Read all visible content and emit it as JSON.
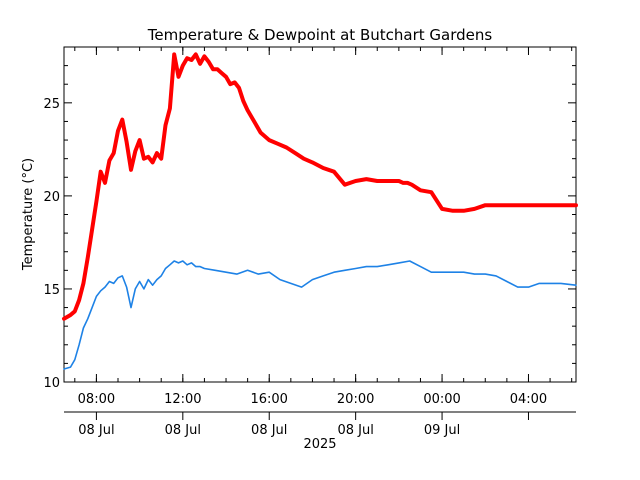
{
  "chart_data": {
    "type": "line",
    "title": "Temperature & Dewpoint at Butchart Gardens",
    "ylabel": "Temperature (°C)",
    "ylim": [
      10,
      28
    ],
    "yticks": [
      10,
      15,
      20,
      25
    ],
    "x_hours_range": [
      6.5,
      30.2
    ],
    "xticks": [
      {
        "hour": 8,
        "time": "08:00",
        "date": "08 Jul"
      },
      {
        "hour": 12,
        "time": "12:00",
        "date": "08 Jul"
      },
      {
        "hour": 16,
        "time": "16:00",
        "date": "08 Jul"
      },
      {
        "hour": 20,
        "time": "20:00",
        "date": "08 Jul"
      },
      {
        "hour": 24,
        "time": "00:00",
        "date": "09 Jul"
      },
      {
        "hour": 28,
        "time": "04:00",
        "date": ""
      }
    ],
    "year_label": "2025",
    "series": [
      {
        "color": "#ff0000",
        "x": [
          6.5,
          6.8,
          7.0,
          7.2,
          7.4,
          7.6,
          7.8,
          8.0,
          8.2,
          8.4,
          8.6,
          8.8,
          9.0,
          9.2,
          9.4,
          9.6,
          9.8,
          10.0,
          10.2,
          10.4,
          10.6,
          10.8,
          11.0,
          11.2,
          11.4,
          11.6,
          11.8,
          12.0,
          12.2,
          12.4,
          12.6,
          12.8,
          13.0,
          13.2,
          13.4,
          13.6,
          13.8,
          14.0,
          14.2,
          14.4,
          14.6,
          14.8,
          15.0,
          15.3,
          15.6,
          16.0,
          16.4,
          16.8,
          17.2,
          17.6,
          18.0,
          18.5,
          19.0,
          19.5,
          20.0,
          20.5,
          21.0,
          21.5,
          22.0,
          22.2,
          22.4,
          22.6,
          23.0,
          23.5,
          24.0,
          24.5,
          25.0,
          25.5,
          26.0,
          26.5,
          27.0,
          27.4,
          27.6,
          27.8,
          28.0,
          28.5,
          29.0,
          29.5,
          30.2
        ],
        "y": [
          13.4,
          13.6,
          13.8,
          14.4,
          15.3,
          16.7,
          18.2,
          19.7,
          21.3,
          20.7,
          21.9,
          22.3,
          23.5,
          24.1,
          22.9,
          21.4,
          22.4,
          23.0,
          22.0,
          22.1,
          21.8,
          22.3,
          22.0,
          23.8,
          24.7,
          27.6,
          26.4,
          27.0,
          27.4,
          27.3,
          27.6,
          27.1,
          27.5,
          27.2,
          26.8,
          26.8,
          26.6,
          26.4,
          26.0,
          26.1,
          25.8,
          25.1,
          24.6,
          24.0,
          23.4,
          23.0,
          22.8,
          22.6,
          22.3,
          22.0,
          21.8,
          21.5,
          21.3,
          20.6,
          20.8,
          20.9,
          20.8,
          20.8,
          20.8,
          20.7,
          20.7,
          20.6,
          20.3,
          20.2,
          19.3,
          19.2,
          19.2,
          19.3,
          19.5,
          19.5,
          19.5,
          19.5,
          19.5,
          19.5,
          19.5,
          19.5,
          19.5,
          19.5,
          19.5
        ]
      },
      {
        "color": "#1e82e6",
        "x": [
          6.5,
          6.8,
          7.0,
          7.2,
          7.4,
          7.6,
          7.8,
          8.0,
          8.2,
          8.4,
          8.6,
          8.8,
          9.0,
          9.2,
          9.4,
          9.6,
          9.8,
          10.0,
          10.2,
          10.4,
          10.6,
          10.8,
          11.0,
          11.2,
          11.4,
          11.6,
          11.8,
          12.0,
          12.2,
          12.4,
          12.6,
          12.8,
          13.0,
          13.5,
          14.0,
          14.5,
          15.0,
          15.5,
          16.0,
          16.5,
          17.0,
          17.5,
          18.0,
          18.5,
          19.0,
          19.5,
          20.0,
          20.5,
          21.0,
          21.5,
          22.0,
          22.5,
          23.0,
          23.5,
          24.0,
          24.5,
          25.0,
          25.5,
          26.0,
          26.5,
          27.0,
          27.5,
          28.0,
          28.5,
          29.0,
          29.5,
          30.2
        ],
        "y": [
          10.7,
          10.8,
          11.2,
          12.0,
          12.9,
          13.4,
          14.0,
          14.6,
          14.9,
          15.1,
          15.4,
          15.3,
          15.6,
          15.7,
          15.1,
          14.0,
          15.0,
          15.4,
          15.0,
          15.5,
          15.2,
          15.5,
          15.7,
          16.1,
          16.3,
          16.5,
          16.4,
          16.5,
          16.3,
          16.4,
          16.2,
          16.2,
          16.1,
          16.0,
          15.9,
          15.8,
          16.0,
          15.8,
          15.9,
          15.5,
          15.3,
          15.1,
          15.5,
          15.7,
          15.9,
          16.0,
          16.1,
          16.2,
          16.2,
          16.3,
          16.4,
          16.5,
          16.2,
          15.9,
          15.9,
          15.9,
          15.9,
          15.8,
          15.8,
          15.7,
          15.4,
          15.1,
          15.1,
          15.3,
          15.3,
          15.3,
          15.2
        ]
      }
    ]
  }
}
